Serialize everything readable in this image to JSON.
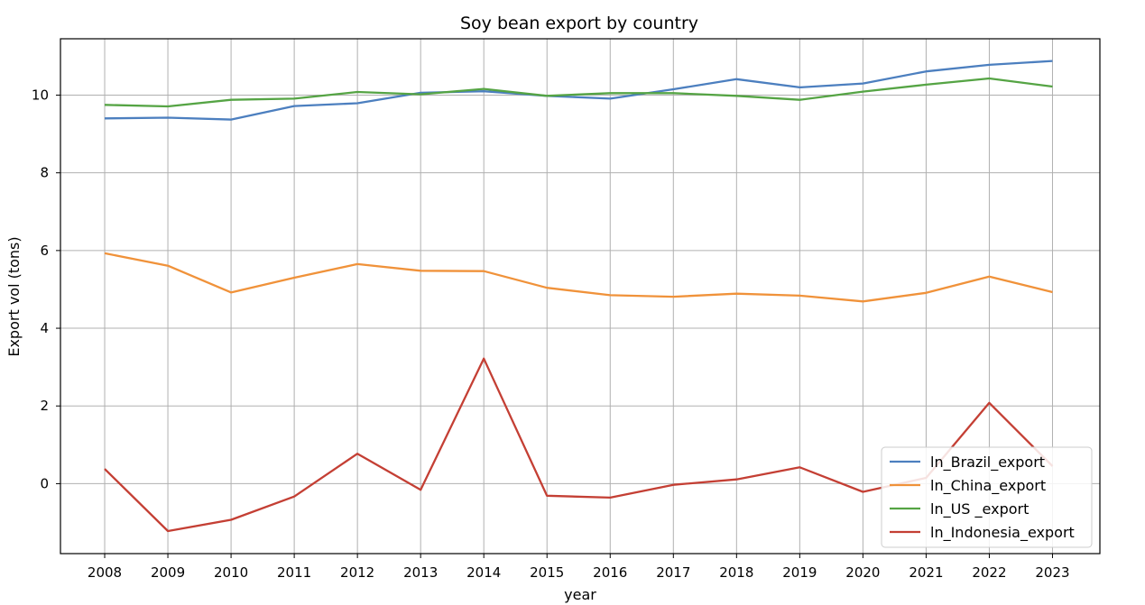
{
  "chart_data": {
    "type": "line",
    "title": "Soy bean export by country",
    "xlabel": "year",
    "ylabel": "Export vol (tons)",
    "x": [
      2008,
      2009,
      2010,
      2011,
      2012,
      2013,
      2014,
      2015,
      2016,
      2017,
      2018,
      2019,
      2020,
      2021,
      2022,
      2023
    ],
    "xlim": [
      2007.3,
      2023.75
    ],
    "ylim": [
      -1.8,
      11.45
    ],
    "yticks": [
      0,
      2,
      4,
      6,
      8,
      10
    ],
    "grid": true,
    "legend_position": "lower-right",
    "series": [
      {
        "name": "ln_Brazil_export",
        "color": "#4c7fbf",
        "values": [
          9.4,
          9.42,
          9.37,
          9.72,
          9.79,
          10.06,
          10.1,
          9.98,
          9.91,
          10.15,
          10.41,
          10.2,
          10.3,
          10.61,
          10.78,
          10.88
        ]
      },
      {
        "name": "ln_China_export",
        "color": "#f0923a",
        "values": [
          5.93,
          5.61,
          4.92,
          5.3,
          5.65,
          5.48,
          5.47,
          5.04,
          4.85,
          4.81,
          4.89,
          4.84,
          4.69,
          4.91,
          5.33,
          4.93
        ]
      },
      {
        "name": "ln_US _export",
        "color": "#55a444",
        "values": [
          9.75,
          9.71,
          9.88,
          9.91,
          10.08,
          10.02,
          10.16,
          9.98,
          10.05,
          10.05,
          9.98,
          9.88,
          10.09,
          10.27,
          10.43,
          10.22
        ]
      },
      {
        "name": "ln_Indonesia_export",
        "color": "#c43f34",
        "values": [
          0.38,
          -1.22,
          -0.93,
          -0.33,
          0.77,
          -0.16,
          3.22,
          -0.31,
          -0.36,
          -0.03,
          0.11,
          0.42,
          -0.21,
          0.15,
          2.08,
          0.45
        ]
      }
    ]
  }
}
